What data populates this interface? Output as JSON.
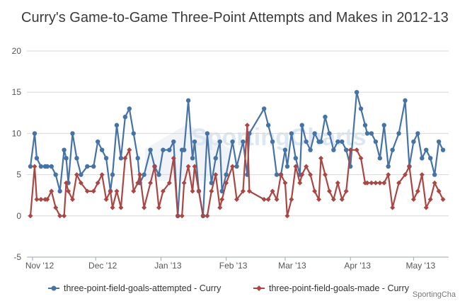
{
  "title": "Curry's Game-to-Game Three-Point Attempts and Makes in 2012-13",
  "credit": "SportingCha",
  "watermark": "SportingCharts",
  "chart_data": {
    "type": "line",
    "title": "Curry's Game-to-Game Three-Point Attempts and Makes in 2012-13",
    "ylim": [
      -5,
      20
    ],
    "yticks": [
      -5,
      0,
      5,
      10,
      15,
      20
    ],
    "grid": true,
    "legend_position": "bottom",
    "x_ticks": [
      {
        "label": "Nov '12",
        "date": "2012-11-01"
      },
      {
        "label": "Dec '12",
        "date": "2012-12-01"
      },
      {
        "label": "Jan '13",
        "date": "2013-01-01"
      },
      {
        "label": "Feb '13",
        "date": "2013-02-01"
      },
      {
        "label": "Mar '13",
        "date": "2013-03-01"
      },
      {
        "label": "Apr '13",
        "date": "2013-04-01"
      },
      {
        "label": "May '13",
        "date": "2013-05-01"
      }
    ],
    "x": [
      "2012-10-31",
      "2012-11-02",
      "2012-11-03",
      "2012-11-05",
      "2012-11-07",
      "2012-11-08",
      "2012-11-10",
      "2012-11-12",
      "2012-11-14",
      "2012-11-16",
      "2012-11-17",
      "2012-11-18",
      "2012-11-20",
      "2012-11-22",
      "2012-11-24",
      "2012-11-27",
      "2012-11-30",
      "2012-12-02",
      "2012-12-04",
      "2012-12-06",
      "2012-12-08",
      "2012-12-09",
      "2012-12-11",
      "2012-12-13",
      "2012-12-15",
      "2012-12-17",
      "2012-12-19",
      "2012-12-21",
      "2012-12-22",
      "2012-12-24",
      "2012-12-27",
      "2012-12-29",
      "2012-12-31",
      "2013-01-02",
      "2013-01-05",
      "2013-01-07",
      "2013-01-09",
      "2013-01-11",
      "2013-01-12",
      "2013-01-14",
      "2013-01-16",
      "2013-01-17",
      "2013-01-19",
      "2013-01-21",
      "2013-01-23",
      "2013-01-25",
      "2013-01-27",
      "2013-01-29",
      "2013-01-30",
      "2013-02-01",
      "2013-02-04",
      "2013-02-06",
      "2013-02-09",
      "2013-02-11",
      "2013-02-12",
      "2013-02-19",
      "2013-02-21",
      "2013-02-23",
      "2013-02-25",
      "2013-02-27",
      "2013-03-01",
      "2013-03-02",
      "2013-03-04",
      "2013-03-06",
      "2013-03-08",
      "2013-03-09",
      "2013-03-11",
      "2013-03-13",
      "2013-03-15",
      "2013-03-17",
      "2013-03-18",
      "2013-03-20",
      "2013-03-22",
      "2013-03-24",
      "2013-03-26",
      "2013-03-28",
      "2013-03-30",
      "2013-04-01",
      "2013-04-04",
      "2013-04-06",
      "2013-04-08",
      "2013-04-09",
      "2013-04-11",
      "2013-04-13",
      "2013-04-15",
      "2013-04-17",
      "2013-04-19",
      "2013-04-21",
      "2013-04-24",
      "2013-04-27",
      "2013-04-29",
      "2013-05-01",
      "2013-05-03",
      "2013-05-05",
      "2013-05-07",
      "2013-05-09",
      "2013-05-11",
      "2013-05-13",
      "2013-05-15"
    ],
    "series": [
      {
        "name": "three-point-field-goals-attempted - Curry",
        "color": "#4572a7",
        "values": [
          6,
          10,
          7,
          6,
          6,
          6,
          6,
          5,
          3,
          8,
          7,
          4,
          10,
          7,
          5,
          6,
          6,
          9,
          8,
          7,
          3,
          5,
          11,
          7,
          12,
          13,
          10,
          7,
          4,
          5,
          8,
          6,
          5,
          8,
          8,
          9,
          0,
          8,
          8,
          14,
          7,
          9,
          3,
          0,
          10,
          4,
          7,
          9,
          3,
          5,
          9,
          6,
          9,
          5,
          10,
          13,
          11,
          9,
          5,
          5,
          8,
          6,
          10,
          7,
          5,
          11,
          9,
          8,
          10,
          9,
          9,
          12,
          10,
          8,
          9,
          9,
          8,
          6,
          15,
          13,
          11,
          10,
          10,
          9,
          7,
          11,
          6,
          8,
          10,
          14,
          6,
          9,
          10,
          7,
          8,
          7,
          5,
          9,
          8
        ],
        "marker": "circle"
      },
      {
        "name": "three-point-field-goals-made - Curry",
        "color": "#aa4643",
        "values": [
          0,
          6,
          2,
          2,
          2,
          2,
          3,
          1,
          0,
          0,
          4,
          3,
          2,
          5,
          4,
          3,
          3,
          4,
          5,
          2,
          3,
          1,
          3,
          1,
          7,
          8,
          3,
          4,
          5,
          1,
          4,
          6,
          1,
          3,
          4,
          7,
          0,
          0,
          4,
          6,
          3,
          6,
          3,
          0,
          0,
          3,
          5,
          1,
          2,
          4,
          6,
          2,
          3,
          11,
          3,
          2,
          2,
          3,
          2,
          5,
          4,
          0,
          2,
          6,
          4,
          5,
          6,
          5,
          3,
          2,
          7,
          5,
          3,
          2,
          4,
          2,
          3,
          8,
          8,
          7,
          4,
          4,
          4,
          4,
          4,
          4,
          5,
          1,
          4,
          5,
          6,
          2,
          3,
          5,
          1,
          2,
          4,
          3,
          2
        ],
        "marker": "diamond"
      }
    ]
  }
}
